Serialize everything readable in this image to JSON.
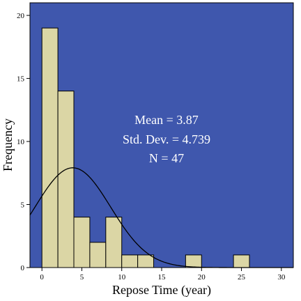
{
  "chart_data": {
    "type": "bar",
    "xlabel": "Repose Time (year)",
    "ylabel": "Frequency",
    "xlim": [
      -1.5,
      31.5
    ],
    "ylim": [
      0,
      21
    ],
    "x_ticks": [
      0,
      5,
      10,
      15,
      20,
      25,
      30
    ],
    "y_ticks": [
      0,
      5,
      10,
      15,
      20
    ],
    "bin_width": 2,
    "bins": [
      {
        "start": 0,
        "end": 2,
        "count": 19
      },
      {
        "start": 2,
        "end": 4,
        "count": 14
      },
      {
        "start": 4,
        "end": 6,
        "count": 4
      },
      {
        "start": 6,
        "end": 8,
        "count": 2
      },
      {
        "start": 8,
        "end": 10,
        "count": 4
      },
      {
        "start": 10,
        "end": 12,
        "count": 1
      },
      {
        "start": 12,
        "end": 14,
        "count": 1
      },
      {
        "start": 18,
        "end": 20,
        "count": 1
      },
      {
        "start": 24,
        "end": 26,
        "count": 1
      }
    ],
    "normal_curve": {
      "mean": 3.87,
      "sd": 4.739,
      "n": 47
    },
    "stats_text": [
      "Mean = 3.87",
      "Std. Dev. = 4.739",
      "N = 47"
    ],
    "colors": {
      "plot_background": "#3f57ad",
      "bar_fill": "#dbd6a5",
      "bar_stroke": "#000000",
      "curve": "#000000",
      "stats_text": "#ffffff"
    }
  }
}
